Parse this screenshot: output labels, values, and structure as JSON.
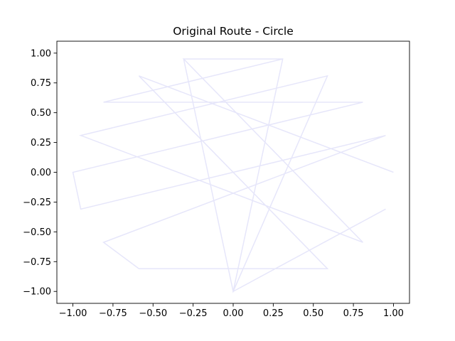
{
  "chart_data": {
    "type": "line",
    "title": "Original Route - Circle",
    "xlabel": "",
    "ylabel": "",
    "xlim": [
      -1.1,
      1.1
    ],
    "ylim": [
      -1.1,
      1.1
    ],
    "xticks": [
      -1.0,
      -0.75,
      -0.5,
      -0.25,
      0.0,
      0.25,
      0.5,
      0.75,
      1.0
    ],
    "yticks": [
      -1.0,
      -0.75,
      -0.5,
      -0.25,
      0.0,
      0.25,
      0.5,
      0.75,
      1.0
    ],
    "xtick_labels": [
      "−1.00",
      "−0.75",
      "−0.50",
      "−0.25",
      "0.00",
      "0.25",
      "0.50",
      "0.75",
      "1.00"
    ],
    "ytick_labels": [
      "−1.00",
      "−0.75",
      "−0.50",
      "−0.25",
      "0.00",
      "0.25",
      "0.50",
      "0.75",
      "1.00"
    ],
    "grid": false,
    "line_color": "#e6e6fa",
    "series": [
      {
        "x": [
          0.951,
          0.0,
          0.309,
          -0.309,
          0.0,
          0.588,
          -0.951,
          0.809,
          -0.309,
          0.309,
          -0.809,
          0.809,
          -1.0,
          -0.951,
          0.951,
          -0.809,
          -0.588,
          0.588,
          -0.588,
          1.0
        ],
        "y": [
          -0.309,
          -1.0,
          0.951,
          0.951,
          -1.0,
          0.809,
          0.309,
          -0.588,
          0.951,
          0.951,
          0.588,
          0.588,
          0.0,
          -0.309,
          0.309,
          -0.588,
          -0.809,
          -0.809,
          0.809,
          0.0
        ]
      }
    ]
  }
}
